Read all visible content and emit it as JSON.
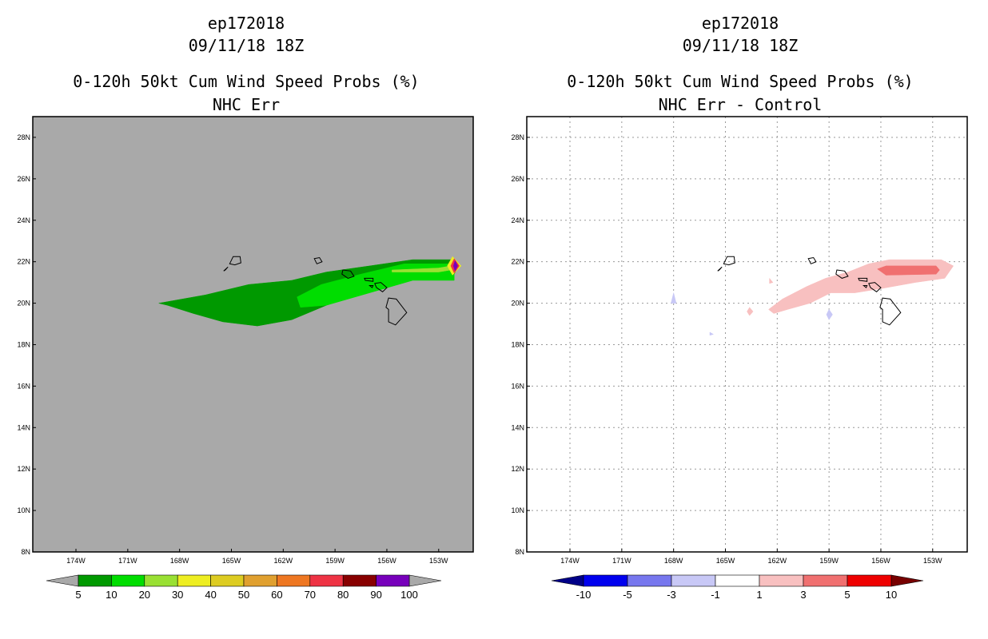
{
  "left": {
    "storm": "ep172018",
    "datetime": "09/11/18 18Z",
    "title": "0-120h 50kt Cum Wind Speed Probs (%)",
    "subtitle": "NHC Err",
    "colorbar": {
      "labels": [
        "5",
        "10",
        "20",
        "30",
        "40",
        "50",
        "60",
        "70",
        "80",
        "90",
        "100"
      ],
      "colors": [
        "#009900",
        "#00dd00",
        "#99e033",
        "#eeee22",
        "#ddcc22",
        "#e0a030",
        "#ee7722",
        "#ee3344",
        "#880000",
        "#7700bb"
      ],
      "under_color": "#a9a9a9",
      "over_color": "#a9a9a9"
    }
  },
  "right": {
    "storm": "ep172018",
    "datetime": "09/11/18 18Z",
    "title": "0-120h 50kt Cum Wind Speed Probs (%)",
    "subtitle": "NHC Err - Control",
    "colorbar": {
      "labels": [
        "-10",
        "-5",
        "-3",
        "-1",
        "1",
        "3",
        "5",
        "10"
      ],
      "colors": [
        "#0000ee",
        "#7777ee",
        "#c8c8f6",
        "#ffffff",
        "#f8c0c0",
        "#f07070",
        "#ee0000"
      ],
      "under_color": "#000088",
      "over_color": "#770000"
    }
  },
  "chart_data": [
    {
      "type": "heatmap",
      "title": "0-120h 50kt Cum Wind Speed Probs (%)",
      "subtitle": "NHC Err",
      "x_ticks": [
        "174W",
        "171W",
        "168W",
        "165W",
        "162W",
        "159W",
        "156W",
        "153W"
      ],
      "y_ticks": [
        "8N",
        "10N",
        "12N",
        "14N",
        "16N",
        "18N",
        "20N",
        "22N",
        "24N",
        "26N",
        "28N"
      ],
      "xlim": [
        -176.5,
        -151.0
      ],
      "ylim": [
        8,
        29
      ],
      "background": "#a9a9a9",
      "grid": false,
      "regions": [
        {
          "level": "5-10",
          "color": "#009900",
          "lonlat": [
            [
              -169.2,
              20.0
            ],
            [
              -166.5,
              20.4
            ],
            [
              -164.0,
              20.9
            ],
            [
              -161.5,
              21.1
            ],
            [
              -159.5,
              21.5
            ],
            [
              -157.0,
              21.8
            ],
            [
              -154.5,
              22.1
            ],
            [
              -152.1,
              22.1
            ],
            [
              -151.8,
              21.8
            ],
            [
              -152.1,
              21.4
            ],
            [
              -154.5,
              21.3
            ],
            [
              -157.0,
              20.7
            ],
            [
              -159.5,
              19.9
            ],
            [
              -161.5,
              19.2
            ],
            [
              -163.5,
              18.9
            ],
            [
              -165.5,
              19.1
            ],
            [
              -167.2,
              19.5
            ],
            [
              -168.7,
              19.9
            ]
          ]
        },
        {
          "level": "10-20",
          "color": "#00dd00",
          "lonlat": [
            [
              -161.2,
              20.3
            ],
            [
              -159.8,
              20.9
            ],
            [
              -157.5,
              21.4
            ],
            [
              -155.0,
              21.9
            ],
            [
              -152.1,
              21.9
            ],
            [
              -152.1,
              21.1
            ],
            [
              -154.5,
              21.1
            ],
            [
              -157.0,
              20.5
            ],
            [
              -159.5,
              19.9
            ],
            [
              -161.0,
              19.8
            ]
          ]
        },
        {
          "level": "20-30",
          "color": "#99e033",
          "lonlat": [
            [
              -155.7,
              21.6
            ],
            [
              -153.0,
              21.7
            ],
            [
              -152.3,
              21.8
            ],
            [
              -152.3,
              21.6
            ],
            [
              -153.0,
              21.5
            ],
            [
              -155.7,
              21.5
            ]
          ]
        },
        {
          "level": "30-50",
          "color": "#eeee22",
          "lonlat": [
            [
              -152.2,
              22.25
            ],
            [
              -151.7,
              21.8
            ],
            [
              -152.2,
              21.35
            ],
            [
              -152.5,
              21.8
            ]
          ]
        },
        {
          "level": "70-80",
          "color": "#ee3344",
          "lonlat": [
            [
              -152.1,
              22.15
            ],
            [
              -151.8,
              21.8
            ],
            [
              -152.1,
              21.45
            ],
            [
              -152.3,
              21.8
            ]
          ]
        },
        {
          "level": "90-100",
          "color": "#7700bb",
          "lonlat": [
            [
              -152.05,
              22.05
            ],
            [
              -151.9,
              21.8
            ],
            [
              -152.05,
              21.55
            ],
            [
              -152.15,
              21.8
            ]
          ]
        }
      ]
    },
    {
      "type": "heatmap",
      "title": "0-120h 50kt Cum Wind Speed Probs (%)",
      "subtitle": "NHC Err - Control",
      "x_ticks": [
        "174W",
        "171W",
        "168W",
        "165W",
        "162W",
        "159W",
        "156W",
        "153W"
      ],
      "y_ticks": [
        "8N",
        "10N",
        "12N",
        "14N",
        "16N",
        "18N",
        "20N",
        "22N",
        "24N",
        "26N",
        "28N"
      ],
      "xlim": [
        -176.5,
        -151.0
      ],
      "ylim": [
        8,
        29
      ],
      "background": "#ffffff",
      "grid": true,
      "regions": [
        {
          "level": "1-3",
          "color": "#f8c0c0",
          "lonlat": [
            [
              -162.5,
              19.7
            ],
            [
              -161.7,
              20.2
            ],
            [
              -160.3,
              20.8
            ],
            [
              -159.2,
              21.2
            ],
            [
              -157.9,
              21.5
            ],
            [
              -156.7,
              21.9
            ],
            [
              -155.5,
              22.1
            ],
            [
              -152.5,
              22.1
            ],
            [
              -151.8,
              21.8
            ],
            [
              -152.3,
              21.2
            ],
            [
              -154.0,
              21.0
            ],
            [
              -156.0,
              20.7
            ],
            [
              -157.5,
              20.5
            ],
            [
              -158.9,
              20.5
            ],
            [
              -160.1,
              20.0
            ],
            [
              -161.4,
              19.7
            ],
            [
              -162.2,
              19.5
            ]
          ]
        },
        {
          "level": "1-3",
          "color": "#f8c0c0",
          "lonlat": [
            [
              -162.45,
              21.2
            ],
            [
              -162.25,
              21.0
            ],
            [
              -162.45,
              20.95
            ]
          ]
        },
        {
          "level": "1-3",
          "color": "#f8c0c0",
          "lonlat": [
            [
              -163.6,
              19.8
            ],
            [
              -163.4,
              19.6
            ],
            [
              -163.6,
              19.4
            ],
            [
              -163.75,
              19.6
            ]
          ]
        },
        {
          "level": "3-5",
          "color": "#f07070",
          "lonlat": [
            [
              -156.2,
              21.65
            ],
            [
              -155.7,
              21.8
            ],
            [
              -152.8,
              21.8
            ],
            [
              -152.6,
              21.6
            ],
            [
              -152.8,
              21.4
            ],
            [
              -155.7,
              21.35
            ]
          ]
        },
        {
          "level": "-3--1",
          "color": "#c8c8f6",
          "lonlat": [
            [
              -168.0,
              20.5
            ],
            [
              -167.85,
              20.0
            ],
            [
              -168.15,
              20.0
            ]
          ]
        },
        {
          "level": "-3--1",
          "color": "#c8c8f6",
          "lonlat": [
            [
              -159.0,
              19.7
            ],
            [
              -158.8,
              19.45
            ],
            [
              -159.0,
              19.2
            ],
            [
              -159.15,
              19.45
            ]
          ]
        },
        {
          "level": "-3--1",
          "color": "#c8c8f6",
          "lonlat": [
            [
              -165.9,
              18.6
            ],
            [
              -165.7,
              18.5
            ],
            [
              -165.9,
              18.45
            ]
          ]
        }
      ]
    }
  ]
}
